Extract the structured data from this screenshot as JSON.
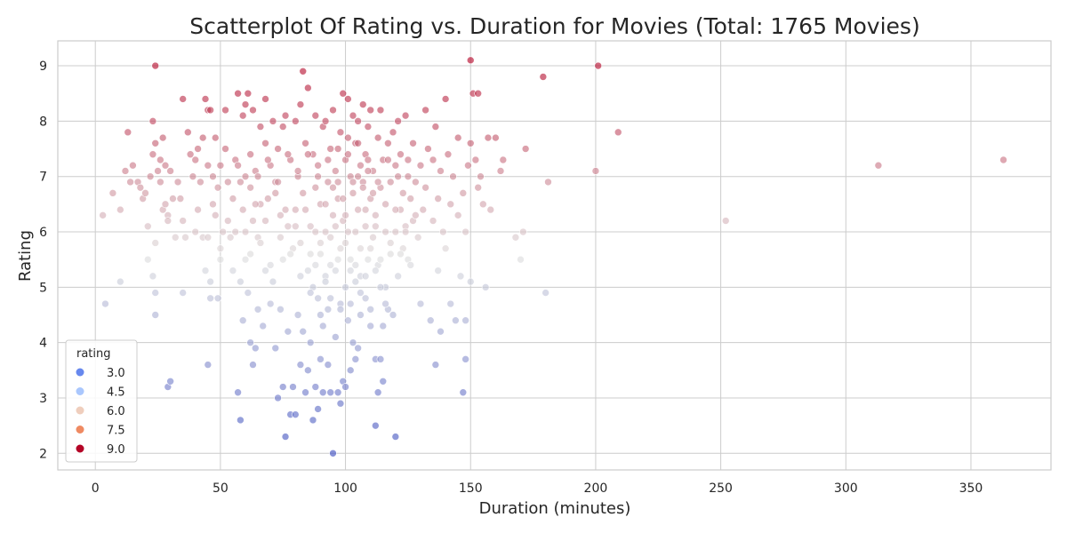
{
  "chart_data": {
    "type": "scatter",
    "title": "Scatterplot Of Rating vs. Duration for Movies (Total: 1765 Movies)",
    "xlabel": "Duration (minutes)",
    "ylabel": "Rating",
    "xlim": [
      -15,
      382
    ],
    "ylim": [
      1.7,
      9.45
    ],
    "xticks": [
      0,
      50,
      100,
      150,
      200,
      250,
      300,
      350
    ],
    "yticks": [
      2,
      3,
      4,
      5,
      6,
      7,
      8,
      9
    ],
    "grid": true,
    "hue": "rating",
    "colormap": {
      "low": "#3b4cc0",
      "mid": "#dddddd",
      "high": "#b40426",
      "range": [
        2.0,
        9.1
      ]
    },
    "legend": {
      "title": "rating",
      "placement": "lower-left",
      "entries": [
        {
          "label": "3.0",
          "color": "#6788ee"
        },
        {
          "label": "4.5",
          "color": "#aac7fd"
        },
        {
          "label": "6.0",
          "color": "#efcebd"
        },
        {
          "label": "7.5",
          "color": "#ef8a62"
        },
        {
          "label": "9.0",
          "color": "#b40426"
        }
      ]
    },
    "points": [
      [
        3,
        6.3
      ],
      [
        4,
        4.7
      ],
      [
        7,
        6.7
      ],
      [
        10,
        6.4
      ],
      [
        10,
        5.1
      ],
      [
        12,
        7.1
      ],
      [
        13,
        7.8
      ],
      [
        14,
        6.9
      ],
      [
        15,
        7.2
      ],
      [
        17,
        6.9
      ],
      [
        18,
        6.8
      ],
      [
        19,
        6.6
      ],
      [
        20,
        6.7
      ],
      [
        21,
        6.1
      ],
      [
        21,
        5.5
      ],
      [
        22,
        7.0
      ],
      [
        23,
        8.0
      ],
      [
        23,
        5.2
      ],
      [
        23,
        7.4
      ],
      [
        24,
        9.0
      ],
      [
        24,
        4.9
      ],
      [
        24,
        4.5
      ],
      [
        24,
        7.6
      ],
      [
        24,
        5.8
      ],
      [
        25,
        7.1
      ],
      [
        26,
        7.3
      ],
      [
        26,
        6.9
      ],
      [
        27,
        6.4
      ],
      [
        27,
        7.7
      ],
      [
        28,
        6.5
      ],
      [
        28,
        7.2
      ],
      [
        29,
        3.2
      ],
      [
        29,
        6.3
      ],
      [
        29,
        6.2
      ],
      [
        30,
        3.3
      ],
      [
        30,
        7.1
      ],
      [
        31,
        6.6
      ],
      [
        32,
        5.9
      ],
      [
        33,
        6.9
      ],
      [
        34,
        6.6
      ],
      [
        35,
        8.4
      ],
      [
        35,
        4.9
      ],
      [
        35,
        6.2
      ],
      [
        36,
        5.9
      ],
      [
        37,
        7.8
      ],
      [
        38,
        7.4
      ],
      [
        39,
        7.0
      ],
      [
        40,
        7.3
      ],
      [
        40,
        6.0
      ],
      [
        41,
        7.5
      ],
      [
        41,
        6.4
      ],
      [
        42,
        6.9
      ],
      [
        43,
        7.7
      ],
      [
        43,
        5.9
      ],
      [
        44,
        5.3
      ],
      [
        44,
        8.4
      ],
      [
        45,
        3.6
      ],
      [
        45,
        7.2
      ],
      [
        45,
        8.2
      ],
      [
        45,
        5.9
      ],
      [
        46,
        5.1
      ],
      [
        46,
        4.8
      ],
      [
        46,
        8.2
      ],
      [
        47,
        6.5
      ],
      [
        47,
        7.0
      ],
      [
        48,
        7.7
      ],
      [
        48,
        6.3
      ],
      [
        49,
        6.8
      ],
      [
        49,
        4.8
      ],
      [
        50,
        7.2
      ],
      [
        50,
        5.7
      ],
      [
        50,
        5.5
      ],
      [
        51,
        6.0
      ],
      [
        52,
        8.2
      ],
      [
        52,
        7.5
      ],
      [
        53,
        6.2
      ],
      [
        53,
        6.9
      ],
      [
        54,
        5.9
      ],
      [
        55,
        5.3
      ],
      [
        55,
        6.6
      ],
      [
        56,
        7.3
      ],
      [
        56,
        6.0
      ],
      [
        57,
        3.1
      ],
      [
        57,
        8.5
      ],
      [
        57,
        7.2
      ],
      [
        58,
        2.6
      ],
      [
        58,
        5.1
      ],
      [
        58,
        6.9
      ],
      [
        59,
        4.4
      ],
      [
        59,
        8.1
      ],
      [
        59,
        6.4
      ],
      [
        60,
        8.3
      ],
      [
        60,
        5.5
      ],
      [
        60,
        7.0
      ],
      [
        61,
        4.9
      ],
      [
        61,
        8.5
      ],
      [
        62,
        4.0
      ],
      [
        62,
        6.8
      ],
      [
        62,
        7.4
      ],
      [
        63,
        3.6
      ],
      [
        63,
        8.2
      ],
      [
        63,
        6.2
      ],
      [
        64,
        3.9
      ],
      [
        64,
        7.1
      ],
      [
        65,
        4.6
      ],
      [
        65,
        5.9
      ],
      [
        66,
        7.9
      ],
      [
        66,
        6.5
      ],
      [
        67,
        4.3
      ],
      [
        68,
        5.3
      ],
      [
        68,
        7.6
      ],
      [
        68,
        8.4
      ],
      [
        69,
        6.6
      ],
      [
        70,
        4.7
      ],
      [
        70,
        7.2
      ],
      [
        71,
        8.0
      ],
      [
        71,
        5.1
      ],
      [
        72,
        6.9
      ],
      [
        72,
        3.9
      ],
      [
        73,
        3.0
      ],
      [
        73,
        7.5
      ],
      [
        74,
        6.3
      ],
      [
        74,
        4.6
      ],
      [
        75,
        3.2
      ],
      [
        75,
        7.9
      ],
      [
        75,
        5.5
      ],
      [
        76,
        8.1
      ],
      [
        76,
        2.3
      ],
      [
        77,
        6.1
      ],
      [
        77,
        4.2
      ],
      [
        78,
        2.7
      ],
      [
        78,
        7.3
      ],
      [
        79,
        5.7
      ],
      [
        79,
        3.2
      ],
      [
        80,
        2.7
      ],
      [
        80,
        8.0
      ],
      [
        80,
        6.4
      ],
      [
        81,
        4.5
      ],
      [
        81,
        7.0
      ],
      [
        82,
        3.6
      ],
      [
        82,
        8.3
      ],
      [
        82,
        5.8
      ],
      [
        83,
        8.9
      ],
      [
        83,
        4.2
      ],
      [
        83,
        6.7
      ],
      [
        84,
        3.1
      ],
      [
        84,
        7.6
      ],
      [
        85,
        8.6
      ],
      [
        85,
        5.3
      ],
      [
        85,
        3.5
      ],
      [
        86,
        6.1
      ],
      [
        86,
        4.0
      ],
      [
        87,
        7.4
      ],
      [
        87,
        2.6
      ],
      [
        87,
        5.0
      ],
      [
        88,
        3.2
      ],
      [
        88,
        6.8
      ],
      [
        88,
        8.1
      ],
      [
        89,
        2.8
      ],
      [
        89,
        4.8
      ],
      [
        89,
        7.2
      ],
      [
        90,
        3.7
      ],
      [
        90,
        5.6
      ],
      [
        90,
        6.5
      ],
      [
        91,
        3.1
      ],
      [
        91,
        7.9
      ],
      [
        91,
        4.3
      ],
      [
        92,
        6.0
      ],
      [
        92,
        8.0
      ],
      [
        92,
        5.2
      ],
      [
        93,
        3.6
      ],
      [
        93,
        6.9
      ],
      [
        93,
        4.6
      ],
      [
        94,
        3.1
      ],
      [
        94,
        7.5
      ],
      [
        94,
        5.9
      ],
      [
        95,
        2.0
      ],
      [
        95,
        6.3
      ],
      [
        95,
        8.2
      ],
      [
        96,
        4.1
      ],
      [
        96,
        7.1
      ],
      [
        97,
        3.1
      ],
      [
        97,
        5.5
      ],
      [
        97,
        6.6
      ],
      [
        98,
        2.9
      ],
      [
        98,
        7.8
      ],
      [
        98,
        4.7
      ],
      [
        99,
        3.3
      ],
      [
        99,
        6.2
      ],
      [
        99,
        8.5
      ],
      [
        100,
        3.2
      ],
      [
        100,
        5.8
      ],
      [
        100,
        7.3
      ],
      [
        101,
        4.4
      ],
      [
        101,
        8.4
      ],
      [
        101,
        6.0
      ],
      [
        102,
        3.5
      ],
      [
        102,
        7.0
      ],
      [
        102,
        5.3
      ],
      [
        103,
        4.0
      ],
      [
        103,
        6.7
      ],
      [
        103,
        8.1
      ],
      [
        104,
        3.7
      ],
      [
        104,
        5.1
      ],
      [
        104,
        7.6
      ],
      [
        105,
        3.9
      ],
      [
        105,
        6.4
      ],
      [
        105,
        8.0
      ],
      [
        106,
        4.5
      ],
      [
        106,
        7.2
      ],
      [
        106,
        5.7
      ],
      [
        107,
        6.9
      ],
      [
        107,
        8.3
      ],
      [
        108,
        4.8
      ],
      [
        108,
        7.4
      ],
      [
        108,
        6.1
      ],
      [
        109,
        5.5
      ],
      [
        109,
        7.9
      ],
      [
        110,
        4.3
      ],
      [
        110,
        6.6
      ],
      [
        110,
        8.2
      ],
      [
        111,
        5.9
      ],
      [
        111,
        7.1
      ],
      [
        112,
        2.5
      ],
      [
        112,
        3.7
      ],
      [
        112,
        6.3
      ],
      [
        113,
        3.1
      ],
      [
        113,
        7.7
      ],
      [
        113,
        5.4
      ],
      [
        114,
        3.7
      ],
      [
        114,
        8.2
      ],
      [
        114,
        6.8
      ],
      [
        115,
        3.3
      ],
      [
        115,
        4.3
      ],
      [
        115,
        7.3
      ],
      [
        116,
        5.0
      ],
      [
        116,
        6.5
      ],
      [
        117,
        4.6
      ],
      [
        117,
        7.6
      ],
      [
        118,
        5.6
      ],
      [
        118,
        6.9
      ],
      [
        119,
        4.5
      ],
      [
        119,
        7.8
      ],
      [
        120,
        2.3
      ],
      [
        120,
        6.0
      ],
      [
        120,
        7.2
      ],
      [
        121,
        5.2
      ],
      [
        121,
        8.0
      ],
      [
        122,
        6.4
      ],
      [
        122,
        7.4
      ],
      [
        123,
        5.7
      ],
      [
        123,
        6.7
      ],
      [
        124,
        8.1
      ],
      [
        124,
        6.1
      ],
      [
        125,
        7.0
      ],
      [
        125,
        5.5
      ],
      [
        126,
        6.6
      ],
      [
        127,
        7.6
      ],
      [
        127,
        6.2
      ],
      [
        128,
        6.9
      ],
      [
        129,
        5.9
      ],
      [
        130,
        7.2
      ],
      [
        130,
        4.7
      ],
      [
        131,
        6.4
      ],
      [
        132,
        8.2
      ],
      [
        132,
        6.8
      ],
      [
        133,
        7.5
      ],
      [
        134,
        4.4
      ],
      [
        135,
        6.2
      ],
      [
        135,
        7.3
      ],
      [
        136,
        3.6
      ],
      [
        136,
        7.9
      ],
      [
        137,
        5.3
      ],
      [
        137,
        6.6
      ],
      [
        138,
        4.2
      ],
      [
        138,
        7.1
      ],
      [
        139,
        6.0
      ],
      [
        140,
        8.4
      ],
      [
        140,
        5.7
      ],
      [
        141,
        7.4
      ],
      [
        142,
        6.5
      ],
      [
        142,
        4.7
      ],
      [
        143,
        7.0
      ],
      [
        144,
        4.4
      ],
      [
        145,
        6.3
      ],
      [
        145,
        7.7
      ],
      [
        146,
        5.2
      ],
      [
        147,
        3.1
      ],
      [
        147,
        6.7
      ],
      [
        148,
        4.4
      ],
      [
        148,
        3.7
      ],
      [
        148,
        6.0
      ],
      [
        149,
        7.2
      ],
      [
        150,
        9.1
      ],
      [
        150,
        5.1
      ],
      [
        150,
        7.6
      ],
      [
        151,
        8.5
      ],
      [
        152,
        7.3
      ],
      [
        153,
        8.5
      ],
      [
        153,
        6.8
      ],
      [
        154,
        7.0
      ],
      [
        155,
        6.5
      ],
      [
        156,
        5.0
      ],
      [
        157,
        7.7
      ],
      [
        158,
        6.4
      ],
      [
        160,
        7.7
      ],
      [
        162,
        7.1
      ],
      [
        163,
        7.3
      ],
      [
        168,
        5.9
      ],
      [
        170,
        5.5
      ],
      [
        171,
        6.0
      ],
      [
        172,
        7.5
      ],
      [
        179,
        8.8
      ],
      [
        180,
        4.9
      ],
      [
        181,
        6.9
      ],
      [
        200,
        7.1
      ],
      [
        201,
        9.0
      ],
      [
        209,
        7.8
      ],
      [
        252,
        6.2
      ],
      [
        313,
        7.2
      ],
      [
        363,
        7.3
      ],
      [
        60,
        6.0
      ],
      [
        62,
        5.6
      ],
      [
        64,
        6.5
      ],
      [
        66,
        5.8
      ],
      [
        68,
        6.2
      ],
      [
        70,
        5.4
      ],
      [
        72,
        6.7
      ],
      [
        74,
        5.9
      ],
      [
        76,
        6.4
      ],
      [
        78,
        5.6
      ],
      [
        80,
        6.1
      ],
      [
        82,
        5.2
      ],
      [
        84,
        6.4
      ],
      [
        86,
        5.6
      ],
      [
        88,
        6.0
      ],
      [
        90,
        5.8
      ],
      [
        92,
        6.5
      ],
      [
        94,
        5.4
      ],
      [
        96,
        6.1
      ],
      [
        98,
        5.7
      ],
      [
        100,
        6.3
      ],
      [
        102,
        5.5
      ],
      [
        104,
        6.0
      ],
      [
        106,
        5.2
      ],
      [
        108,
        6.4
      ],
      [
        110,
        5.7
      ],
      [
        112,
        6.1
      ],
      [
        114,
        5.5
      ],
      [
        116,
        6.0
      ],
      [
        118,
        5.8
      ],
      [
        120,
        6.4
      ],
      [
        122,
        5.6
      ],
      [
        124,
        6.0
      ],
      [
        126,
        5.4
      ],
      [
        128,
        6.3
      ],
      [
        65,
        7.0
      ],
      [
        69,
        7.3
      ],
      [
        73,
        6.9
      ],
      [
        77,
        7.4
      ],
      [
        81,
        7.1
      ],
      [
        85,
        7.4
      ],
      [
        89,
        7.0
      ],
      [
        93,
        7.3
      ],
      [
        97,
        6.9
      ],
      [
        101,
        7.4
      ],
      [
        105,
        7.0
      ],
      [
        109,
        7.3
      ],
      [
        113,
        6.9
      ],
      [
        117,
        7.3
      ],
      [
        121,
        7.0
      ],
      [
        125,
        7.3
      ],
      [
        86,
        4.9
      ],
      [
        88,
        5.4
      ],
      [
        90,
        4.5
      ],
      [
        92,
        5.1
      ],
      [
        94,
        4.8
      ],
      [
        96,
        5.3
      ],
      [
        98,
        4.6
      ],
      [
        100,
        5.0
      ],
      [
        102,
        4.7
      ],
      [
        104,
        5.4
      ],
      [
        106,
        4.9
      ],
      [
        108,
        5.2
      ],
      [
        110,
        4.6
      ],
      [
        112,
        5.3
      ],
      [
        114,
        5.0
      ],
      [
        116,
        4.7
      ],
      [
        95,
        6.8
      ],
      [
        97,
        7.5
      ],
      [
        99,
        6.6
      ],
      [
        101,
        7.7
      ],
      [
        103,
        6.9
      ],
      [
        105,
        7.6
      ],
      [
        107,
        6.8
      ],
      [
        109,
        7.1
      ],
      [
        111,
        6.7
      ]
    ]
  }
}
